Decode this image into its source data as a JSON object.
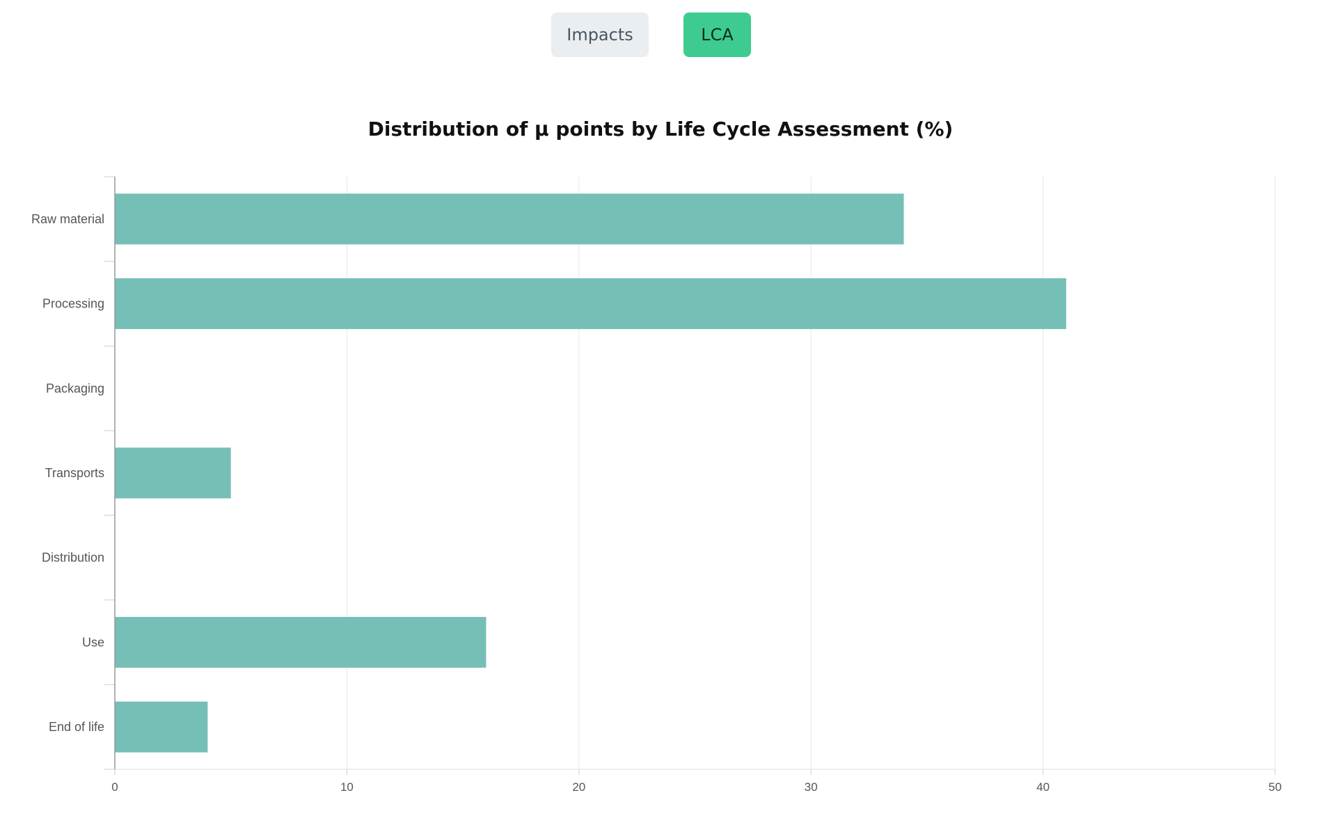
{
  "tabs": {
    "impacts_label": "Impacts",
    "lca_label": "LCA",
    "active": "LCA"
  },
  "colors": {
    "bar": "#76bfb6",
    "active_tab": "#3ecb8f",
    "inactive_tab": "#eaeef1"
  },
  "chart_data": {
    "type": "bar",
    "orientation": "horizontal",
    "title": "Distribution of μ points by Life Cycle Assessment (%)",
    "xlabel": "",
    "ylabel": "",
    "categories": [
      "Raw material",
      "Processing",
      "Packaging",
      "Transports",
      "Distribution",
      "Use",
      "End of life"
    ],
    "values": [
      34,
      41,
      0,
      5,
      0,
      16,
      4
    ],
    "xlim": [
      0,
      50
    ],
    "xticks": [
      0,
      10,
      20,
      30,
      40,
      50
    ],
    "grid": true,
    "legend": "none"
  }
}
